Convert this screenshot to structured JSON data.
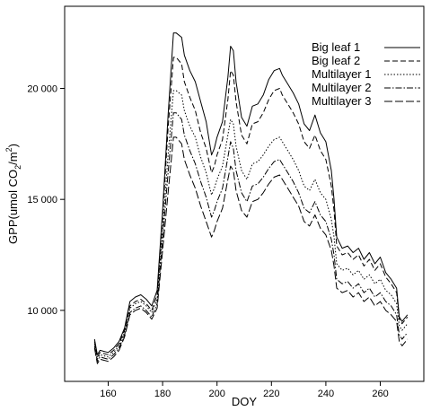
{
  "chart_data": {
    "type": "line",
    "xlabel": "DOY",
    "ylabel_main": "GPP(umol CO",
    "ylabel_sub": "2",
    "ylabel_mid": "/m",
    "ylabel_sup": "2",
    "ylabel_end": ")",
    "xlim": [
      144,
      276
    ],
    "ylim": [
      6800,
      23700
    ],
    "xticks": [
      160,
      180,
      200,
      220,
      240,
      260
    ],
    "yticks": [
      10000,
      15000,
      20000
    ],
    "ytick_labels": [
      "10 000",
      "15 000",
      "20 000"
    ],
    "grid": false,
    "legend_position": "top-right",
    "x": [
      155,
      156,
      157,
      160,
      162,
      164,
      166,
      168,
      170,
      172,
      174,
      176,
      178,
      180,
      182,
      184,
      185,
      187,
      188,
      190,
      192,
      194,
      196,
      198,
      199,
      200,
      202,
      204,
      205,
      206,
      207,
      209,
      211,
      213,
      215,
      217,
      219,
      221,
      223,
      224,
      226,
      228,
      230,
      232,
      234,
      236,
      238,
      240,
      242,
      243,
      244,
      246,
      248,
      250,
      252,
      254,
      256,
      258,
      260,
      262,
      264,
      266,
      267,
      268,
      270
    ],
    "series": [
      {
        "name": "Big leaf 1",
        "dash": "",
        "values": [
          8700,
          8000,
          8200,
          8100,
          8300,
          8600,
          9200,
          10400,
          10600,
          10700,
          10500,
          10200,
          10900,
          14500,
          18800,
          22500,
          22500,
          22300,
          21500,
          20800,
          20300,
          19400,
          18500,
          17000,
          17300,
          17800,
          18500,
          20500,
          21900,
          21700,
          20300,
          18700,
          18300,
          19200,
          19300,
          19700,
          20400,
          20800,
          20900,
          20600,
          20200,
          19800,
          19300,
          18400,
          18100,
          18800,
          18000,
          17600,
          16300,
          15000,
          13300,
          12800,
          12900,
          12600,
          12800,
          12300,
          12600,
          12100,
          12400,
          11700,
          11400,
          11000,
          9700,
          9500,
          9800
        ]
      },
      {
        "name": "Big leaf 2",
        "dash": "6,3",
        "values": [
          8600,
          7900,
          8100,
          8000,
          8200,
          8500,
          9100,
          10200,
          10400,
          10500,
          10300,
          10000,
          10700,
          14200,
          18200,
          21400,
          21400,
          21100,
          20300,
          19600,
          19000,
          18000,
          17300,
          16200,
          16500,
          17000,
          17700,
          19500,
          20800,
          20600,
          19400,
          17900,
          17500,
          18400,
          18500,
          18900,
          19500,
          19900,
          20000,
          19700,
          19300,
          18900,
          18400,
          17600,
          17300,
          17900,
          17200,
          16800,
          15600,
          14500,
          12900,
          12500,
          12600,
          12300,
          12500,
          12000,
          12300,
          11800,
          12100,
          11500,
          11200,
          10800,
          9600,
          9400,
          9700
        ]
      },
      {
        "name": "Multilayer 1",
        "dash": "1.5,2",
        "values": [
          8500,
          7800,
          8000,
          7900,
          8100,
          8400,
          9000,
          10100,
          10300,
          10400,
          10200,
          9900,
          10500,
          13600,
          17000,
          19900,
          19900,
          19700,
          19000,
          18300,
          17800,
          16900,
          16200,
          15200,
          15500,
          15900,
          16500,
          17900,
          18600,
          18400,
          17400,
          16300,
          15900,
          16600,
          16700,
          17000,
          17400,
          17700,
          17800,
          17600,
          17200,
          16800,
          16300,
          15600,
          15400,
          15900,
          15300,
          15000,
          14100,
          13300,
          12100,
          11800,
          11900,
          11600,
          11800,
          11400,
          11600,
          11200,
          11400,
          10900,
          10700,
          10300,
          9300,
          9100,
          9400
        ]
      },
      {
        "name": "Multilayer 2",
        "dash": "7,2,1.5,2",
        "values": [
          8400,
          7700,
          7900,
          7800,
          8000,
          8300,
          8900,
          9900,
          10100,
          10200,
          10000,
          9700,
          10300,
          13200,
          16200,
          18900,
          18900,
          18600,
          17900,
          17200,
          16600,
          15800,
          15100,
          14200,
          14500,
          14900,
          15500,
          16900,
          17600,
          17300,
          16300,
          15300,
          14900,
          15600,
          15700,
          16000,
          16400,
          16700,
          16800,
          16600,
          16200,
          15800,
          15300,
          14600,
          14400,
          14900,
          14300,
          14000,
          13200,
          12500,
          11400,
          11200,
          11300,
          11000,
          11200,
          10800,
          11000,
          10600,
          10800,
          10400,
          10200,
          9800,
          8900,
          8700,
          9000
        ]
      },
      {
        "name": "Multilayer 3",
        "dash": "9,3",
        "values": [
          8300,
          7600,
          7800,
          7700,
          7900,
          8200,
          8800,
          9800,
          10000,
          10100,
          9900,
          9600,
          10100,
          12700,
          15300,
          17800,
          17800,
          17500,
          16800,
          16100,
          15500,
          14700,
          14000,
          13300,
          13600,
          14000,
          14600,
          15900,
          16500,
          16300,
          15400,
          14500,
          14200,
          14900,
          15000,
          15300,
          15700,
          16000,
          16100,
          15900,
          15500,
          15100,
          14700,
          14000,
          13800,
          14300,
          13700,
          13400,
          12700,
          12000,
          11000,
          10800,
          10900,
          10600,
          10800,
          10400,
          10600,
          10200,
          10400,
          10000,
          9800,
          9500,
          8600,
          8400,
          8700
        ]
      }
    ]
  }
}
